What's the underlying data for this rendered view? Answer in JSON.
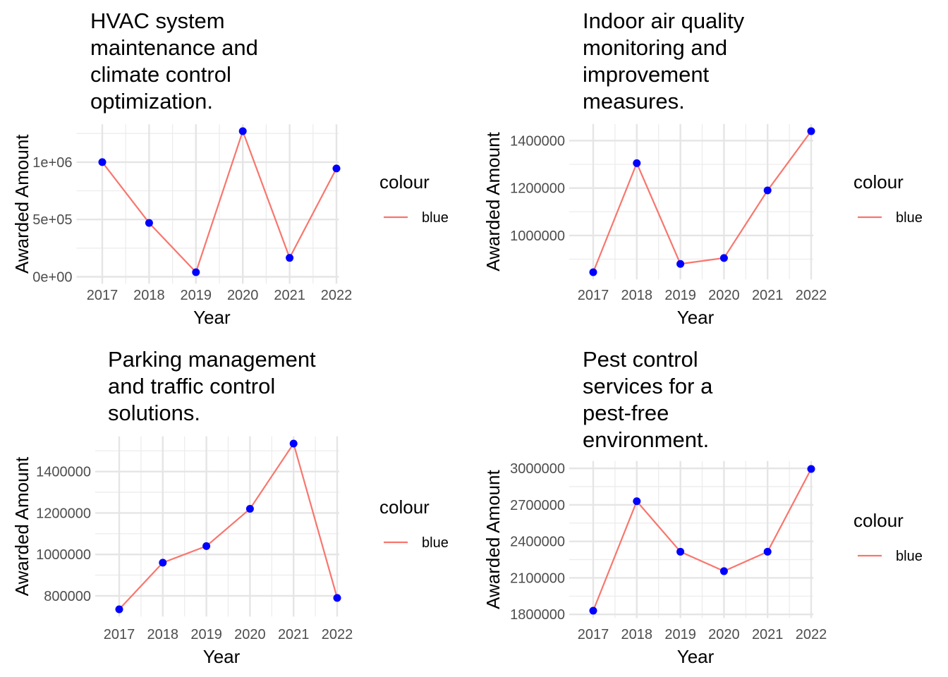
{
  "chart_data": [
    {
      "type": "line",
      "title": [
        "HVAC system",
        "maintenance and",
        "climate control",
        "optimization."
      ],
      "xlabel": "Year",
      "ylabel": "Awarded Amount",
      "x": [
        2017,
        2018,
        2019,
        2020,
        2021,
        2022
      ],
      "y_tick_values": [
        0,
        500000,
        1000000
      ],
      "y_tick_labels": [
        "0e+00",
        "5e+05",
        "1e+06"
      ],
      "ylim": [
        -60000,
        1330000
      ],
      "series": [
        {
          "name": "blue",
          "values": [
            1000000,
            470000,
            40000,
            1270000,
            165000,
            945000
          ]
        }
      ],
      "legend": {
        "title": "colour",
        "label": "blue",
        "position": "right"
      },
      "line_color": "#F8766D",
      "point_color": "#0000FF",
      "grid": true
    },
    {
      "type": "line",
      "title": [
        "Indoor air quality",
        "monitoring and",
        "improvement",
        "measures."
      ],
      "xlabel": "Year",
      "ylabel": "Awarded Amount",
      "x": [
        2017,
        2018,
        2019,
        2020,
        2021,
        2022
      ],
      "y_tick_values": [
        1000000,
        1200000,
        1400000
      ],
      "y_tick_labels": [
        "1000000",
        "1200000",
        "1400000"
      ],
      "ylim": [
        815000,
        1470000
      ],
      "series": [
        {
          "name": "blue",
          "values": [
            845000,
            1305000,
            880000,
            905000,
            1190000,
            1440000
          ]
        }
      ],
      "legend": {
        "title": "colour",
        "label": "blue",
        "position": "right"
      },
      "line_color": "#F8766D",
      "point_color": "#0000FF",
      "grid": true
    },
    {
      "type": "line",
      "title": [
        "Parking management",
        "and traffic control",
        "solutions."
      ],
      "xlabel": "Year",
      "ylabel": "Awarded Amount",
      "x": [
        2017,
        2018,
        2019,
        2020,
        2021,
        2022
      ],
      "y_tick_values": [
        800000,
        1000000,
        1200000,
        1400000
      ],
      "y_tick_labels": [
        "800000",
        "1000000",
        "1200000",
        "1400000"
      ],
      "ylim": [
        700000,
        1570000
      ],
      "series": [
        {
          "name": "blue",
          "values": [
            735000,
            960000,
            1040000,
            1220000,
            1535000,
            790000
          ]
        }
      ],
      "legend": {
        "title": "colour",
        "label": "blue",
        "position": "right"
      },
      "line_color": "#F8766D",
      "point_color": "#0000FF",
      "grid": true
    },
    {
      "type": "line",
      "title": [
        "Pest control",
        "services for a",
        "pest-free",
        "environment."
      ],
      "xlabel": "Year",
      "ylabel": "Awarded Amount",
      "x": [
        2017,
        2018,
        2019,
        2020,
        2021,
        2022
      ],
      "y_tick_values": [
        1800000,
        2100000,
        2400000,
        2700000,
        3000000
      ],
      "y_tick_labels": [
        "1800000",
        "2100000",
        "2400000",
        "2700000",
        "3000000"
      ],
      "ylim": [
        1770000,
        3060000
      ],
      "series": [
        {
          "name": "blue",
          "values": [
            1830000,
            2730000,
            2315000,
            2155000,
            2315000,
            2995000
          ]
        }
      ],
      "legend": {
        "title": "colour",
        "label": "blue",
        "position": "right"
      },
      "line_color": "#F8766D",
      "point_color": "#0000FF",
      "grid": true
    }
  ]
}
